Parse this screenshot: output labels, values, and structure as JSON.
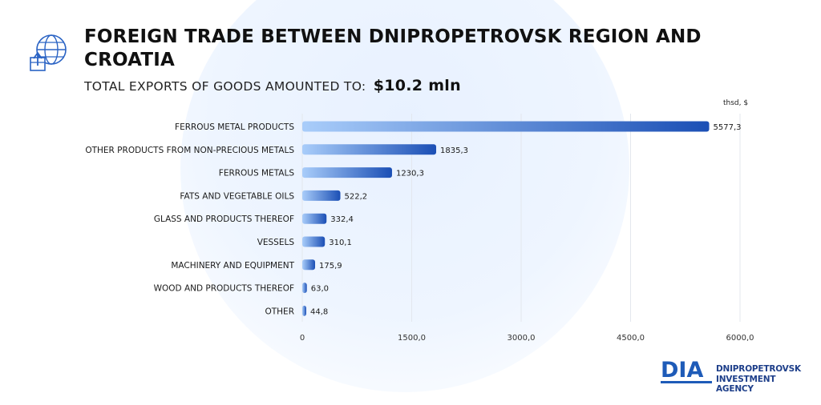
{
  "header": {
    "title": "FOREIGN TRADE BETWEEN DNIPROPETROVSK REGION AND CROATIA",
    "subtitle_label": "TOTAL EXPORTS OF GOODS AMOUNTED TO:",
    "subtitle_value": "$10.2 mln"
  },
  "unit_label": "thsd, $",
  "brand": {
    "mark": "DIA",
    "line1": "DNIPROPETROVSK",
    "line2": "INVESTMENT AGENCY"
  },
  "colors": {
    "bar_start": "#a9cdfa",
    "bar_end": "#1b4fb5",
    "text": "#1a1a1a",
    "grid": "#e3e7ee"
  },
  "chart_data": {
    "type": "bar",
    "orientation": "horizontal",
    "categories": [
      "FERROUS METAL PRODUCTS",
      "OTHER PRODUCTS FROM NON-PRECIOUS METALS",
      "FERROUS METALS",
      "FATS AND VEGETABLE OILS",
      "GLASS AND PRODUCTS THEREOF",
      "VESSELS",
      "MACHINERY AND EQUIPMENT",
      "WOOD AND PRODUCTS THEREOF",
      "OTHER"
    ],
    "values": [
      5577.3,
      1835.3,
      1230.3,
      522.2,
      332.4,
      310.1,
      175.9,
      63.0,
      44.8
    ],
    "value_labels": [
      "5577,3",
      "1835,3",
      "1230,3",
      "522,2",
      "332,4",
      "310,1",
      "175,9",
      "63,0",
      "44,8"
    ],
    "xlim": [
      0,
      6000
    ],
    "x_ticks": [
      0,
      1500,
      3000,
      4500,
      6000
    ],
    "x_tick_labels": [
      "0",
      "1500,0",
      "3000,0",
      "4500,0",
      "6000,0"
    ],
    "grid": true,
    "title": "FOREIGN TRADE BETWEEN DNIPROPETROVSK REGION AND CROATIA"
  }
}
